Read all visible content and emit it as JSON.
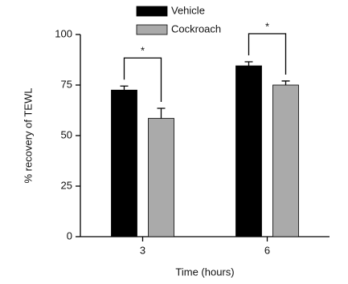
{
  "chart_data": {
    "type": "bar",
    "categories": [
      "3",
      "6"
    ],
    "series": [
      {
        "name": "Vehicle",
        "color": "#000000",
        "values": [
          72.5,
          84.5
        ],
        "errors": [
          2,
          2
        ]
      },
      {
        "name": "Cockroach",
        "color": "#aaaaaa",
        "values": [
          58.5,
          75
        ],
        "errors": [
          5,
          2
        ]
      }
    ],
    "ylim": [
      0,
      100
    ],
    "yticks": [
      0,
      25,
      50,
      75,
      100
    ],
    "y_label": "% recovery of TEWL",
    "x_label": "Time (hours)",
    "annotations": [
      "*",
      "*"
    ]
  }
}
